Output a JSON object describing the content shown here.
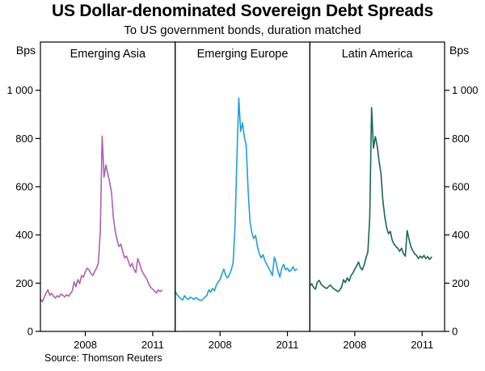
{
  "chart_data": {
    "type": "line",
    "title": "US Dollar-denominated Sovereign Debt Spreads",
    "subtitle": "To US government bonds, duration matched",
    "unit_left": "Bps",
    "unit_right": "Bps",
    "source": "Source: Thomson Reuters",
    "x_start": 2006.0,
    "samples_per_year": 12,
    "x_domain": [
      2006,
      2012
    ],
    "x_ticks": [
      2008,
      2011
    ],
    "x_tick_labels": [
      "2008",
      "2011"
    ],
    "ylim": [
      0,
      1200
    ],
    "y_ticks": [
      0,
      200,
      400,
      600,
      800,
      1000
    ],
    "y_tick_labels": [
      "0",
      "200",
      "400",
      "600",
      "800",
      "1 000"
    ],
    "grid": false,
    "legend_position": "panel-titles",
    "panels": [
      {
        "name": "Emerging Asia",
        "color": "#b05fae",
        "values": [
          135,
          122,
          140,
          158,
          172,
          150,
          158,
          146,
          138,
          148,
          142,
          155,
          150,
          143,
          152,
          146,
          155,
          168,
          205,
          185,
          215,
          198,
          232,
          225,
          248,
          262,
          255,
          240,
          232,
          248,
          262,
          285,
          420,
          810,
          640,
          690,
          655,
          620,
          575,
          470,
          415,
          378,
          352,
          362,
          330,
          305,
          312,
          292,
          268,
          282,
          258,
          244,
          302,
          282,
          255,
          240,
          228,
          215,
          195,
          182,
          175,
          168,
          160,
          172,
          165,
          170
        ]
      },
      {
        "name": "Emerging Europe",
        "color": "#1da0d8",
        "values": [
          168,
          152,
          144,
          136,
          130,
          148,
          138,
          132,
          142,
          138,
          132,
          140,
          136,
          130,
          128,
          134,
          142,
          150,
          172,
          162,
          178,
          168,
          192,
          205,
          215,
          238,
          258,
          232,
          222,
          235,
          255,
          285,
          430,
          720,
          968,
          830,
          865,
          805,
          770,
          590,
          455,
          408,
          385,
          398,
          352,
          322,
          305,
          318,
          292,
          278,
          262,
          248,
          232,
          308,
          285,
          248,
          225,
          262,
          278,
          255,
          262,
          248,
          255,
          268,
          252,
          258
        ]
      },
      {
        "name": "Latin America",
        "color": "#17694a",
        "values": [
          188,
          198,
          182,
          175,
          205,
          212,
          196,
          188,
          182,
          178,
          186,
          192,
          182,
          176,
          170,
          165,
          172,
          185,
          215,
          202,
          222,
          208,
          232,
          242,
          258,
          272,
          288,
          265,
          255,
          275,
          305,
          330,
          470,
          928,
          760,
          808,
          768,
          705,
          655,
          545,
          478,
          432,
          405,
          415,
          378,
          362,
          352,
          345,
          332,
          345,
          322,
          312,
          418,
          382,
          352,
          335,
          322,
          315,
          302,
          312,
          305,
          315,
          302,
          310,
          298,
          308
        ]
      }
    ]
  }
}
